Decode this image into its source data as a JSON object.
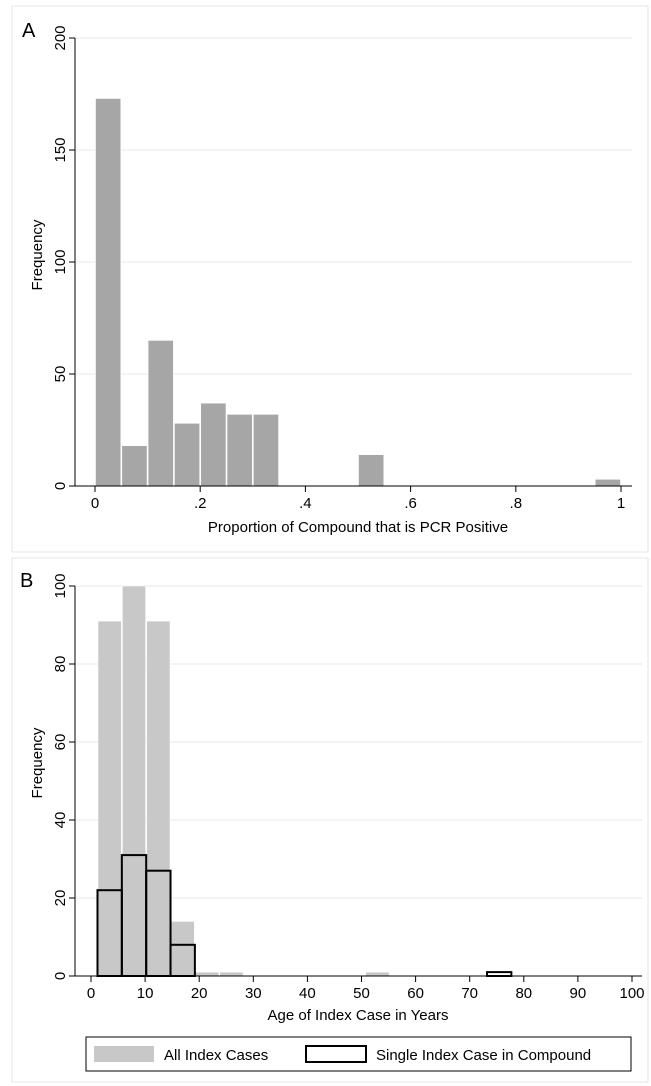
{
  "chart_data": [
    {
      "panel_label": "A",
      "type": "bar",
      "xlabel": "Proportion of Compound that is PCR Positive",
      "ylabel": "Frequency",
      "xlim": [
        0,
        1
      ],
      "ylim": [
        0,
        200
      ],
      "x_ticks": [
        {
          "value": 0,
          "label": "0"
        },
        {
          "value": 0.2,
          "label": ".2"
        },
        {
          "value": 0.4,
          "label": ".4"
        },
        {
          "value": 0.6,
          "label": ".6"
        },
        {
          "value": 0.8,
          "label": ".8"
        },
        {
          "value": 1,
          "label": "1"
        }
      ],
      "y_ticks": [
        {
          "value": 0,
          "label": "0"
        },
        {
          "value": 50,
          "label": "50"
        },
        {
          "value": 100,
          "label": "100"
        },
        {
          "value": 150,
          "label": "150"
        },
        {
          "value": 200,
          "label": "200"
        }
      ],
      "grid": true,
      "bin_width": 0.05,
      "series": [
        {
          "color": "#a6a6a6",
          "bins": [
            {
              "x": 0.0,
              "value": 173
            },
            {
              "x": 0.05,
              "value": 18
            },
            {
              "x": 0.1,
              "value": 65
            },
            {
              "x": 0.15,
              "value": 28
            },
            {
              "x": 0.2,
              "value": 37
            },
            {
              "x": 0.25,
              "value": 32
            },
            {
              "x": 0.3,
              "value": 32
            },
            {
              "x": 0.5,
              "value": 14
            },
            {
              "x": 0.95,
              "value": 3
            }
          ]
        }
      ]
    },
    {
      "panel_label": "B",
      "type": "bar",
      "xlabel": "Age of Index Case in Years",
      "ylabel": "Frequency",
      "xlim": [
        0,
        100
      ],
      "ylim": [
        0,
        100
      ],
      "x_ticks": [
        {
          "value": 0,
          "label": "0"
        },
        {
          "value": 10,
          "label": "10"
        },
        {
          "value": 20,
          "label": "20"
        },
        {
          "value": 30,
          "label": "30"
        },
        {
          "value": 40,
          "label": "40"
        },
        {
          "value": 50,
          "label": "50"
        },
        {
          "value": 60,
          "label": "60"
        },
        {
          "value": 70,
          "label": "70"
        },
        {
          "value": 80,
          "label": "80"
        },
        {
          "value": 90,
          "label": "90"
        },
        {
          "value": 100,
          "label": "100"
        }
      ],
      "y_ticks": [
        {
          "value": 0,
          "label": "0"
        },
        {
          "value": 20,
          "label": "20"
        },
        {
          "value": 40,
          "label": "40"
        },
        {
          "value": 60,
          "label": "60"
        },
        {
          "value": 80,
          "label": "80"
        },
        {
          "value": 100,
          "label": "100"
        }
      ],
      "grid": true,
      "bin_width": 4.5,
      "legend_position": "bottom",
      "series": [
        {
          "name": "All Index Cases",
          "style": "filled",
          "color": "#c8c8c8",
          "bins": [
            {
              "x": 1.2,
              "value": 91
            },
            {
              "x": 5.7,
              "value": 100
            },
            {
              "x": 10.2,
              "value": 91
            },
            {
              "x": 14.7,
              "value": 14
            },
            {
              "x": 19.2,
              "value": 1
            },
            {
              "x": 23.7,
              "value": 1
            },
            {
              "x": 50.7,
              "value": 1
            }
          ]
        },
        {
          "name": "Single Index Case in Compound",
          "style": "outline",
          "color": "#000000",
          "bins": [
            {
              "x": 1.2,
              "value": 22
            },
            {
              "x": 5.7,
              "value": 31
            },
            {
              "x": 10.2,
              "value": 27
            },
            {
              "x": 14.7,
              "value": 8
            },
            {
              "x": 73.2,
              "value": 1
            }
          ]
        }
      ]
    }
  ]
}
